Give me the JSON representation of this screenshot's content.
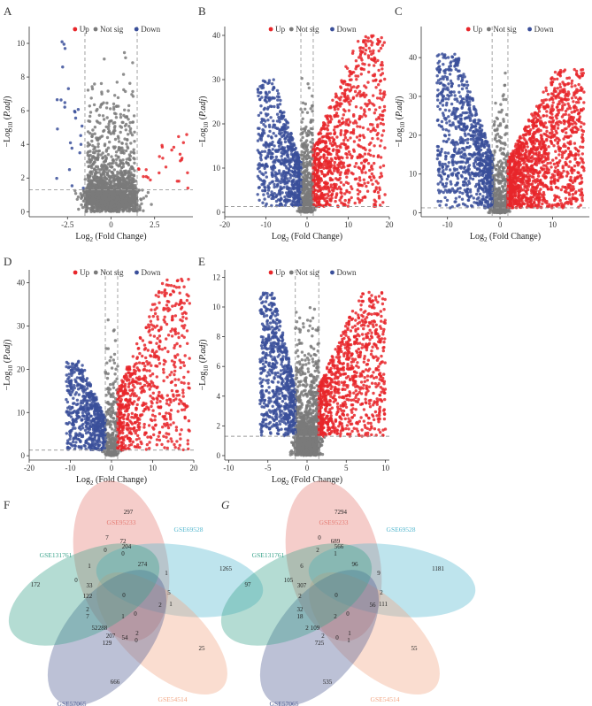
{
  "colors": {
    "up": "#e8262a",
    "notsig": "#7a7a7a",
    "down": "#3a4f9a"
  },
  "legend": {
    "up": "Up",
    "notsig": "Not sig",
    "down": "Down"
  },
  "axis_titles": {
    "x": "Log2 (Fold Change)",
    "y": "-Log10 (P.adj)"
  },
  "chart_data": [
    {
      "type": "scatter",
      "panel": "A",
      "title": "A",
      "xlabel": "Log2 (Fold Change)",
      "ylabel": "-Log10 (P.adj)",
      "xlim": [
        -4.7,
        4.7
      ],
      "ylim": [
        -0.3,
        11
      ],
      "xticks": [
        -2.5,
        0,
        2.5
      ],
      "yticks": [
        0,
        2,
        4,
        6,
        8,
        10
      ],
      "fc_cutoff": 1.5,
      "p_cutoff": 1.3,
      "series": [
        {
          "name": "Up",
          "count": 26,
          "max_x": 4.5,
          "max_y": 4.7
        },
        {
          "name": "Not sig",
          "count": 2200
        },
        {
          "name": "Down",
          "count": 24,
          "max_x": -3.3,
          "max_y": 10.7
        }
      ]
    },
    {
      "type": "scatter",
      "panel": "B",
      "title": "B",
      "xlabel": "Log2 (Fold Change)",
      "ylabel": "-Log10 (P.adj)",
      "xlim": [
        -20,
        20
      ],
      "ylim": [
        -1,
        42
      ],
      "xticks": [
        -20,
        -10,
        0,
        10,
        20
      ],
      "yticks": [
        0,
        10,
        20,
        30,
        40
      ],
      "fc_cutoff": 1.5,
      "p_cutoff": 1.3,
      "series": [
        {
          "name": "Up",
          "count": 900,
          "max_x": 19,
          "max_y": 40
        },
        {
          "name": "Not sig",
          "count": 1000
        },
        {
          "name": "Down",
          "count": 700,
          "max_x": -12,
          "max_y": 30
        }
      ]
    },
    {
      "type": "scatter",
      "panel": "C",
      "title": "C",
      "xlabel": "Log2 (Fold Change)",
      "ylabel": "-Log10 (P.adj)",
      "xlim": [
        -15,
        17
      ],
      "ylim": [
        -1,
        48
      ],
      "xticks": [
        -10,
        0,
        10
      ],
      "yticks": [
        0,
        10,
        20,
        30,
        40
      ],
      "fc_cutoff": 1.5,
      "p_cutoff": 1.3,
      "series": [
        {
          "name": "Up",
          "count": 1400,
          "max_x": 16,
          "max_y": 37
        },
        {
          "name": "Not sig",
          "count": 900
        },
        {
          "name": "Down",
          "count": 900,
          "max_x": -12,
          "max_y": 41
        }
      ]
    },
    {
      "type": "scatter",
      "panel": "D",
      "title": "D",
      "xlabel": "Log2 (Fold Change)",
      "ylabel": "-Log10 (P.adj)",
      "xlim": [
        -20,
        20
      ],
      "ylim": [
        -1,
        43
      ],
      "xticks": [
        -20,
        -10,
        0,
        10,
        20
      ],
      "yticks": [
        0,
        10,
        20,
        30,
        40
      ],
      "fc_cutoff": 1.5,
      "p_cutoff": 1.3,
      "series": [
        {
          "name": "Up",
          "count": 700,
          "max_x": 19,
          "max_y": 41
        },
        {
          "name": "Not sig",
          "count": 600
        },
        {
          "name": "Down",
          "count": 600,
          "max_x": -11,
          "max_y": 22
        }
      ]
    },
    {
      "type": "scatter",
      "panel": "E",
      "title": "E",
      "xlabel": "Log2 (Fold Change)",
      "ylabel": "-Log10 (P.adj)",
      "xlim": [
        -10.5,
        10.5
      ],
      "ylim": [
        -0.3,
        12.5
      ],
      "xticks": [
        -10,
        -5,
        0,
        5,
        10
      ],
      "yticks": [
        0,
        2,
        4,
        6,
        8,
        10,
        12
      ],
      "fc_cutoff": 1.5,
      "p_cutoff": 1.3,
      "series": [
        {
          "name": "Up",
          "count": 900,
          "max_x": 10,
          "max_y": 11
        },
        {
          "name": "Not sig",
          "count": 2200
        },
        {
          "name": "Down",
          "count": 700,
          "max_x": -6,
          "max_y": 11
        }
      ]
    },
    {
      "type": "venn",
      "panel": "F",
      "title": "F",
      "sets": [
        "GSE95233",
        "GSE69528",
        "GSE54514",
        "GSE57065",
        "GSE131761"
      ],
      "set_colors": [
        "#e57b73",
        "#55b8cf",
        "#f2a683",
        "#4f5c92",
        "#3aa38b"
      ],
      "values": [
        "297",
        "1265",
        "25",
        "666",
        "172",
        "72",
        "204",
        "274",
        "1",
        "0",
        "7",
        "0",
        "0",
        "1",
        "5",
        "1",
        "2",
        "33",
        "122",
        "2",
        "7",
        "288",
        "129",
        "52",
        "54",
        "207",
        "2",
        "0",
        "0",
        "1",
        "0"
      ]
    },
    {
      "type": "venn",
      "panel": "G",
      "title": "G",
      "sets": [
        "GSE95233",
        "GSE69528",
        "GSE54514",
        "GSE57065",
        "GSE131761"
      ],
      "set_colors": [
        "#e57b73",
        "#55b8cf",
        "#f2a683",
        "#4f5c92",
        "#3aa38b"
      ],
      "values": [
        "7294",
        "1181",
        "55",
        "535",
        "97",
        "689",
        "566",
        "96",
        "6",
        "105",
        "0",
        "2",
        "1",
        "9",
        "2",
        "111",
        "56",
        "307",
        "2",
        "32",
        "18",
        "109",
        "725",
        "2",
        "0",
        "2",
        "1",
        "1",
        "0",
        "2",
        "0"
      ]
    }
  ]
}
